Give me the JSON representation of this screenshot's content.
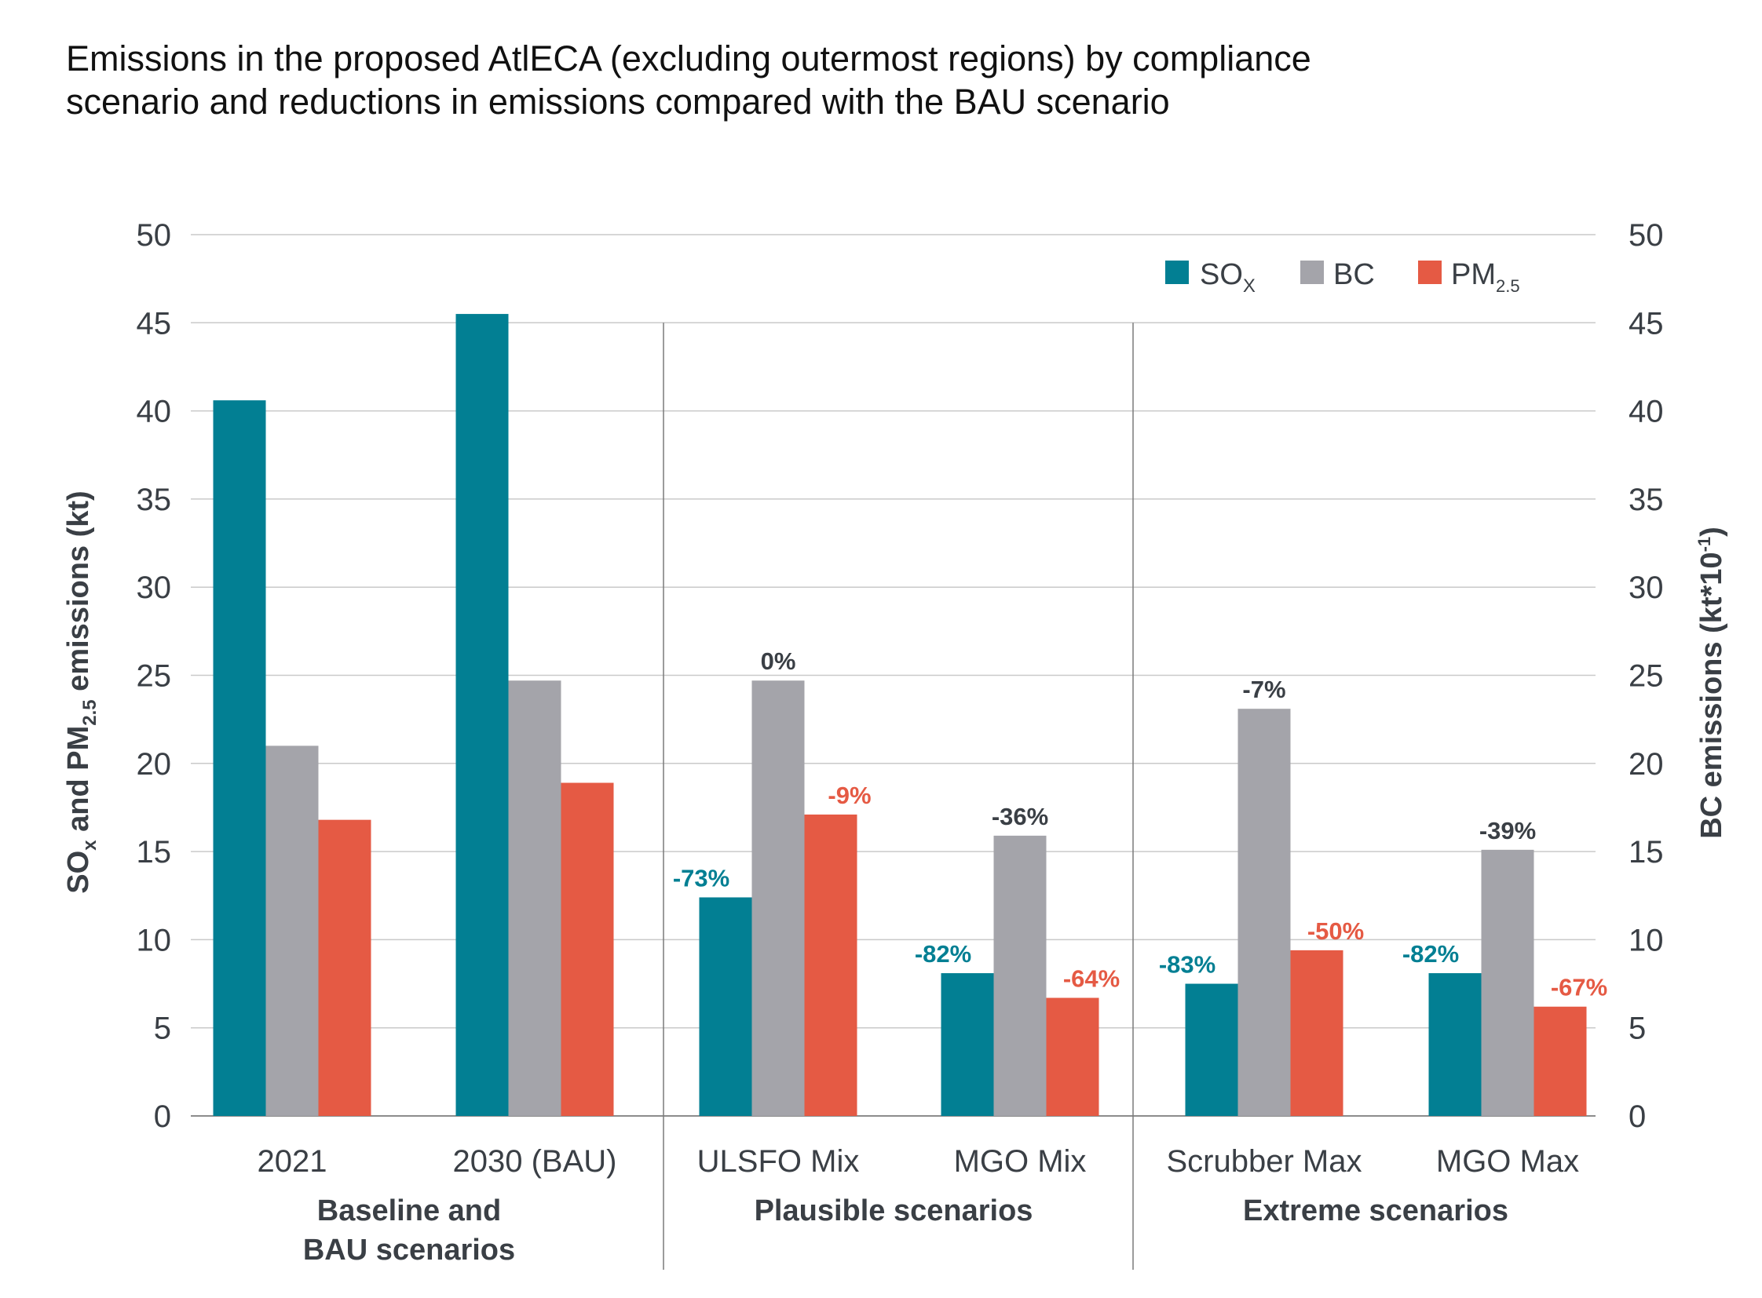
{
  "title_line1": "Emissions in the proposed AtlECA (excluding outermost regions) by compliance",
  "title_line2": "scenario and reductions in emissions compared with the BAU scenario",
  "colors": {
    "sox": "#027f93",
    "bc": "#a4a4aa",
    "pm": "#e55a44",
    "text": "#3a3f45",
    "grid": "#c9c9c9"
  },
  "legend": {
    "sox": {
      "main": "SO",
      "sub": "X"
    },
    "bc": {
      "main": "BC"
    },
    "pm": {
      "main": "PM",
      "sub": "2.5"
    }
  },
  "axis": {
    "left_title": {
      "part1": "SO",
      "sub1": "x",
      "part2": " and PM",
      "sub2": "2.5",
      "part3": " emissions (kt)"
    },
    "right_title": {
      "part1": "BC emissions (kt*10",
      "sup": "-1",
      "part2": ")"
    }
  },
  "chart_data": {
    "type": "bar",
    "ylim": [
      0,
      50
    ],
    "yticks": [
      0,
      5,
      10,
      15,
      20,
      25,
      30,
      35,
      40,
      45,
      50
    ],
    "categories": [
      "2021",
      "2030 (BAU)",
      "ULSFO Mix",
      "MGO Mix",
      "Scrubber Max",
      "MGO Max"
    ],
    "groups": [
      {
        "label_lines": [
          "Baseline and",
          "BAU scenarios"
        ],
        "categories": [
          "2021",
          "2030 (BAU)"
        ]
      },
      {
        "label_lines": [
          "Plausible scenarios"
        ],
        "categories": [
          "ULSFO Mix",
          "MGO Mix"
        ]
      },
      {
        "label_lines": [
          "Extreme scenarios"
        ],
        "categories": [
          "Scrubber Max",
          "MGO Max"
        ]
      }
    ],
    "series": [
      {
        "key": "sox",
        "values": [
          40.6,
          45.5,
          12.4,
          8.1,
          7.5,
          8.1
        ],
        "labels": [
          "",
          "",
          "-73%",
          "-82%",
          "-83%",
          "-82%"
        ]
      },
      {
        "key": "bc",
        "values": [
          21.0,
          24.7,
          24.7,
          15.9,
          23.1,
          15.1
        ],
        "labels": [
          "",
          "",
          "0%",
          "-36%",
          "-7%",
          "-39%"
        ]
      },
      {
        "key": "pm",
        "values": [
          16.8,
          18.9,
          17.1,
          6.7,
          9.4,
          6.2
        ],
        "labels": [
          "",
          "",
          "-9%",
          "-64%",
          "-50%",
          "-67%"
        ]
      }
    ],
    "grid": true,
    "legend_position": "top-right"
  }
}
